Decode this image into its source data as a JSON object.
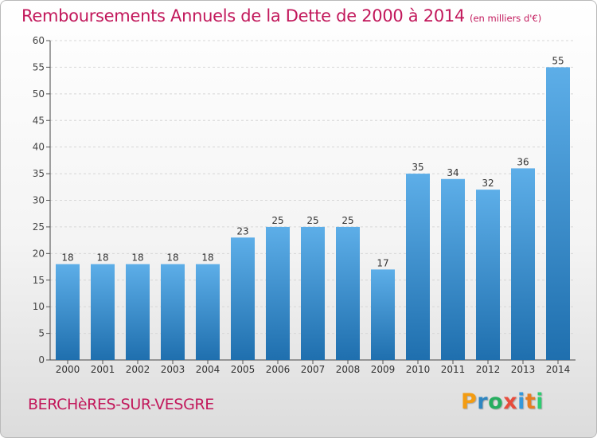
{
  "title": "Remboursements Annuels de la Dette de 2000 à 2014",
  "unit_note": "(en milliers d'€)",
  "city": "BERCHèRES-SUR-VESGRE",
  "brand": {
    "letters": [
      "P",
      "r",
      "o",
      "x",
      "i",
      "t",
      "i"
    ],
    "colors": [
      "#f39c12",
      "#2e86c1",
      "#27ae60",
      "#e74c3c",
      "#3498db",
      "#e67e22",
      "#2ecc71"
    ]
  },
  "colors": {
    "bar_top": "#5daee8",
    "bar_bottom": "#1f6fae",
    "title": "#c2185b"
  },
  "chart_data": {
    "type": "bar",
    "title": "Remboursements Annuels de la Dette de 2000 à 2014",
    "xlabel": "",
    "ylabel": "",
    "categories": [
      "2000",
      "2001",
      "2002",
      "2003",
      "2004",
      "2005",
      "2006",
      "2007",
      "2008",
      "2009",
      "2010",
      "2011",
      "2012",
      "2013",
      "2014"
    ],
    "values": [
      18,
      18,
      18,
      18,
      18,
      23,
      25,
      25,
      25,
      17,
      35,
      34,
      32,
      36,
      55
    ],
    "ylim": [
      0,
      60
    ],
    "yticks": [
      "0",
      "5",
      "10",
      "15",
      "20",
      "25",
      "30",
      "35",
      "40",
      "45",
      "50",
      "55",
      "60"
    ],
    "grid": true
  }
}
